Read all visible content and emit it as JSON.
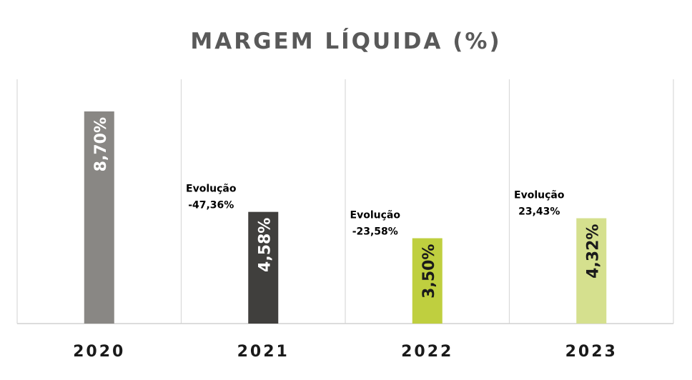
{
  "chart_data": {
    "type": "bar",
    "title": "MARGEM LÍQUIDA (%)",
    "categories": [
      "2020",
      "2021",
      "2022",
      "2023"
    ],
    "values": [
      8.7,
      4.58,
      3.5,
      4.32
    ],
    "value_labels": [
      "8,70%",
      "4,58%",
      "3,50%",
      "4,32%"
    ],
    "bar_colors": [
      "#898784",
      "#403f3d",
      "#bfcf3f",
      "#d5e08e"
    ],
    "value_label_colors": [
      "#ffffff",
      "#ffffff",
      "#1a1a1a",
      "#1a1a1a"
    ],
    "annotations": [
      null,
      {
        "label": "Evolução",
        "value": "-47,36%"
      },
      {
        "label": "Evolução",
        "value": "-23,58%"
      },
      {
        "label": "Evolução",
        "value": "23,43%"
      }
    ],
    "ylim": [
      0,
      10
    ],
    "grid": false,
    "xlabel": "",
    "ylabel": ""
  }
}
